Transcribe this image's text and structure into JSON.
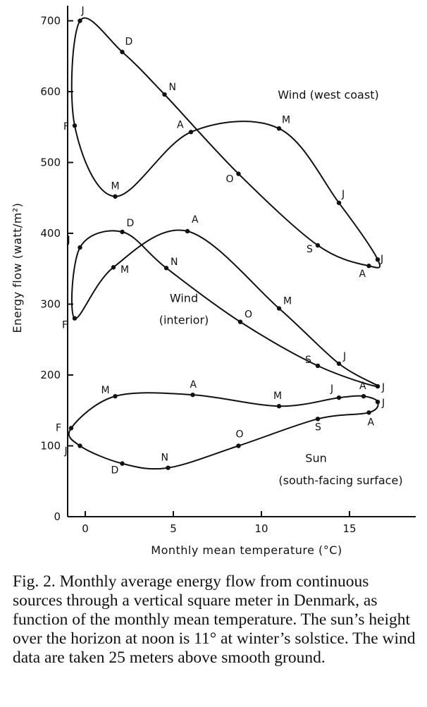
{
  "chart_data": {
    "type": "line",
    "xlabel": "Monthly mean temperature (°C)",
    "ylabel": "Energy flow (watt/m²)",
    "xlim": [
      -1,
      17
    ],
    "ylim": [
      0,
      720
    ],
    "x_ticks": [
      0,
      5,
      10,
      15
    ],
    "y_ticks": [
      0,
      100,
      200,
      300,
      400,
      500,
      600,
      700
    ],
    "series": [
      {
        "label": [
          "Wind (west coast)"
        ],
        "closed": true,
        "points": [
          {
            "m": "J",
            "x": -0.3,
            "y": 700
          },
          {
            "m": "F",
            "x": -0.6,
            "y": 552
          },
          {
            "m": "M",
            "x": 1.7,
            "y": 452
          },
          {
            "m": "A",
            "x": 6.0,
            "y": 543
          },
          {
            "m": "M",
            "x": 11.0,
            "y": 548
          },
          {
            "m": "J",
            "x": 14.4,
            "y": 443
          },
          {
            "m": "J",
            "x": 16.6,
            "y": 363
          },
          {
            "m": "A",
            "x": 16.1,
            "y": 354
          },
          {
            "m": "S",
            "x": 13.2,
            "y": 383
          },
          {
            "m": "O",
            "x": 8.7,
            "y": 484
          },
          {
            "m": "N",
            "x": 4.5,
            "y": 596
          },
          {
            "m": "D",
            "x": 2.1,
            "y": 656
          }
        ]
      },
      {
        "label": [
          "Wind",
          "(interior)"
        ],
        "closed": true,
        "points": [
          {
            "m": "J",
            "x": -0.3,
            "y": 380
          },
          {
            "m": "F",
            "x": -0.6,
            "y": 280
          },
          {
            "m": "M",
            "x": 1.6,
            "y": 352
          },
          {
            "m": "A",
            "x": 5.8,
            "y": 403
          },
          {
            "m": "M",
            "x": 11.0,
            "y": 294
          },
          {
            "m": "J",
            "x": 14.4,
            "y": 216
          },
          {
            "m": "J",
            "x": 16.6,
            "y": 184
          },
          {
            "m": "S",
            "x": 13.2,
            "y": 213
          },
          {
            "m": "O",
            "x": 8.8,
            "y": 275
          },
          {
            "m": "N",
            "x": 4.6,
            "y": 351
          },
          {
            "m": "D",
            "x": 2.1,
            "y": 402
          }
        ]
      },
      {
        "label": [
          "Sun",
          "(south-facing surface)"
        ],
        "closed": true,
        "points": [
          {
            "m": "J",
            "x": -0.3,
            "y": 100
          },
          {
            "m": "F",
            "x": -0.8,
            "y": 125
          },
          {
            "m": "M",
            "x": 1.7,
            "y": 170
          },
          {
            "m": "A",
            "x": 6.1,
            "y": 172
          },
          {
            "m": "M",
            "x": 11.0,
            "y": 156
          },
          {
            "m": "J",
            "x": 14.4,
            "y": 168
          },
          {
            "m": "A",
            "x": 15.8,
            "y": 170
          },
          {
            "m": "J",
            "x": 16.6,
            "y": 162
          },
          {
            "m": "A",
            "x": 16.1,
            "y": 147
          },
          {
            "m": "S",
            "x": 13.2,
            "y": 138
          },
          {
            "m": "O",
            "x": 8.7,
            "y": 100
          },
          {
            "m": "N",
            "x": 4.7,
            "y": 69
          },
          {
            "m": "D",
            "x": 2.1,
            "y": 75
          }
        ]
      }
    ]
  },
  "caption": "Fig. 2. Monthly average energy flow from continuous sources through a vertical square meter in Denmark, as function of the monthly mean temperature. The sun’s height over the horizon at noon is 11° at winter’s solstice. The wind data are taken 25 meters above smooth ground."
}
